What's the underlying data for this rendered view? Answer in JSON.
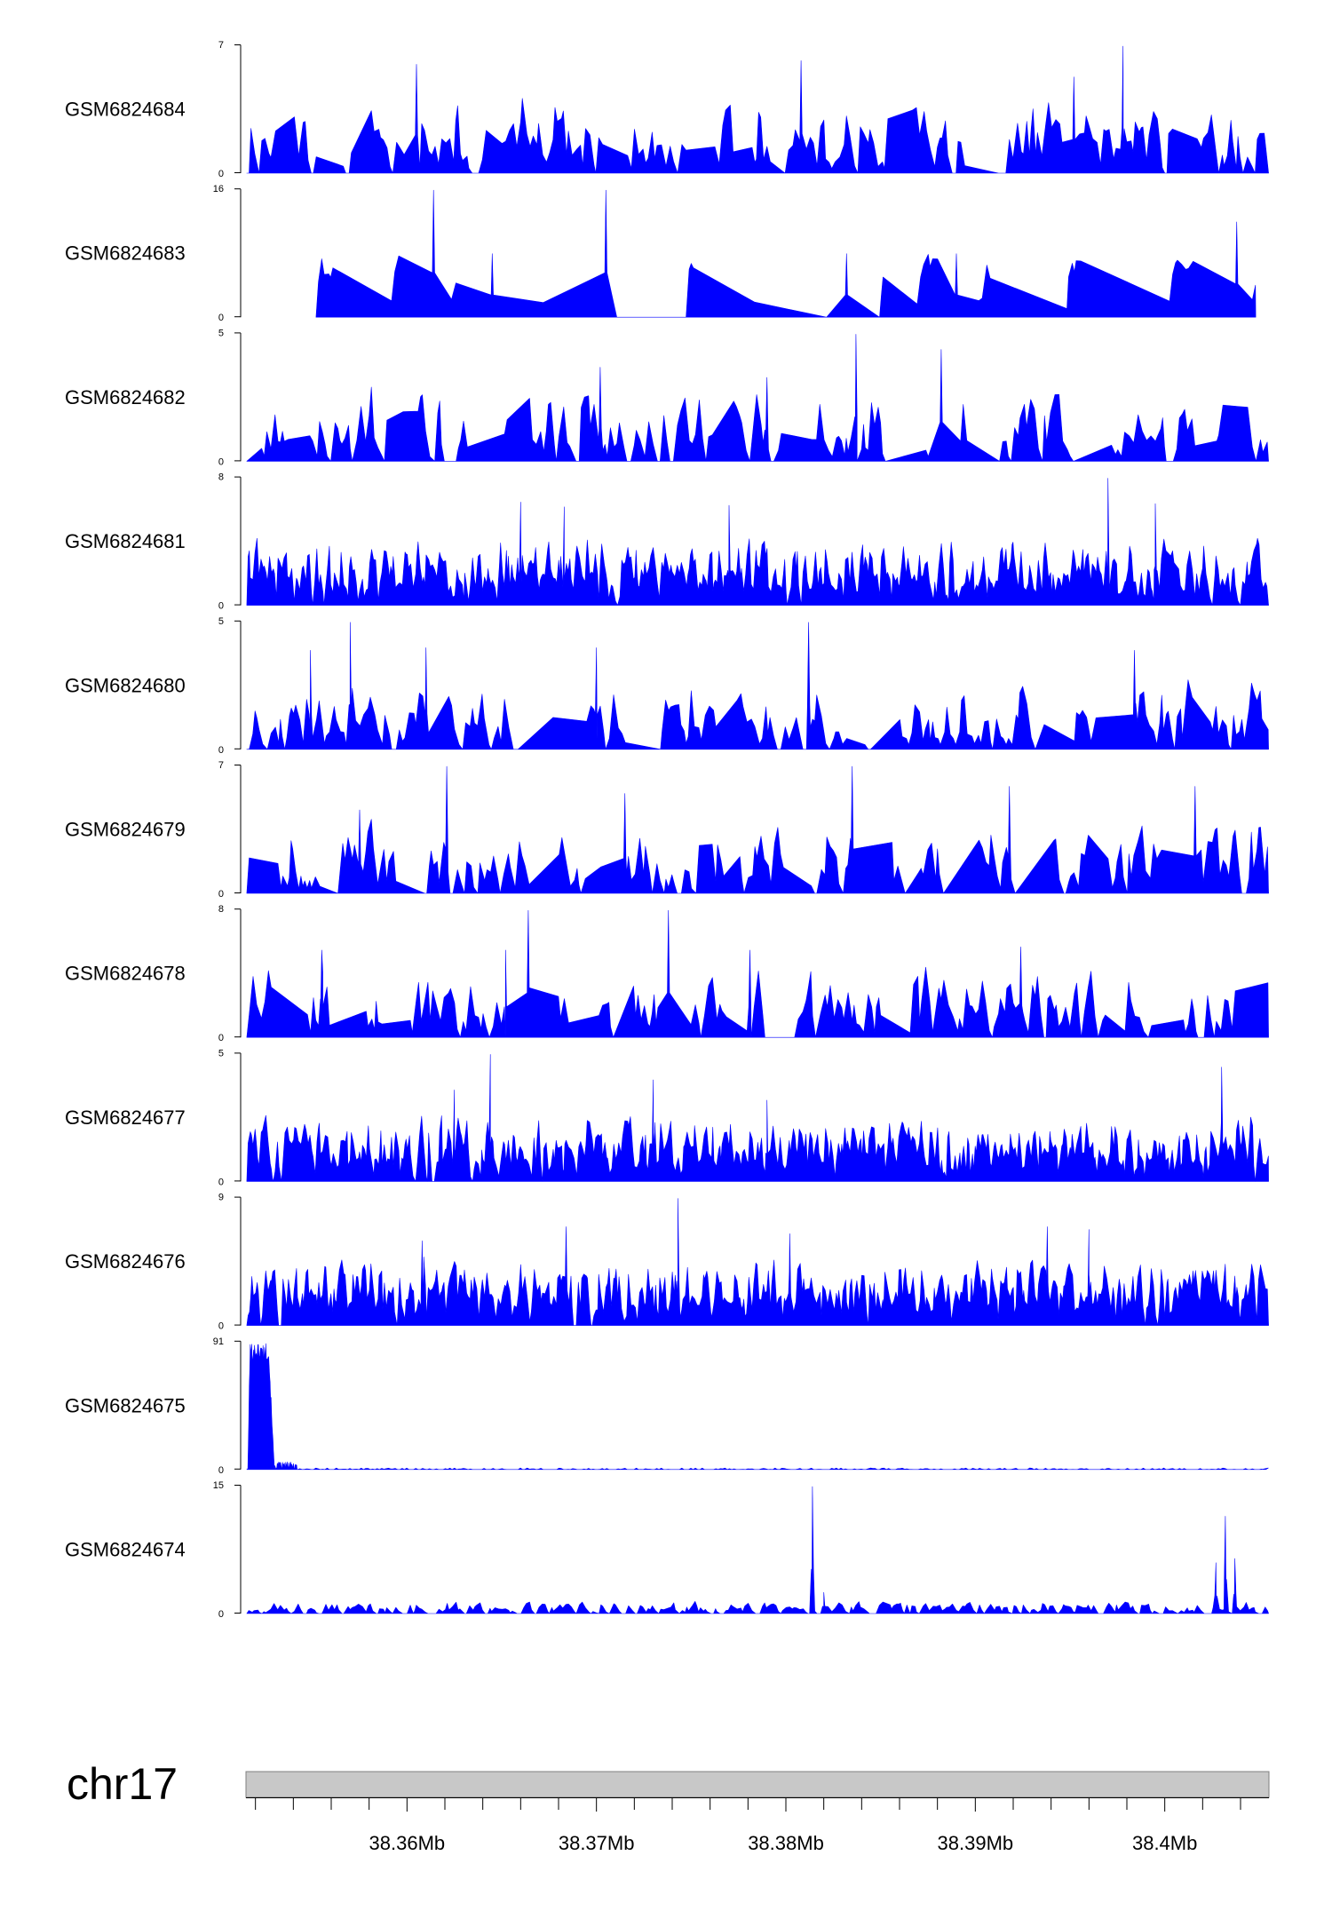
{
  "chart_data": {
    "type": "area",
    "colors": {
      "signal": "#0000FF",
      "ideogram": "#C8C8C8",
      "ideogram_border": "#808080"
    },
    "chromosome": "chr17",
    "xlim": [
      38351500,
      38405500
    ],
    "x_ticks": [
      {
        "pos": 38360000,
        "label": "38.36Mb"
      },
      {
        "pos": 38370000,
        "label": "38.37Mb"
      },
      {
        "pos": 38380000,
        "label": "38.38Mb"
      },
      {
        "pos": 38390000,
        "label": "38.39Mb"
      },
      {
        "pos": 38400000,
        "label": "38.4Mb"
      }
    ],
    "minor_tick_step": 2000,
    "tracks": [
      {
        "name": "GSM6824684",
        "ymin": "0",
        "ymax": "7",
        "max": 7,
        "seed": 11,
        "style": "sparse",
        "peaks": [
          [
            38360500,
            6.0
          ],
          [
            38380800,
            6.2
          ],
          [
            38397800,
            7.0
          ],
          [
            38395200,
            5.3
          ]
        ]
      },
      {
        "name": "GSM6824683",
        "ymin": "0",
        "ymax": "16",
        "max": 16,
        "seed": 23,
        "style": "sparse_gapped",
        "start": 38355200,
        "end": 38404800,
        "peaks": [
          [
            38361400,
            16.0
          ],
          [
            38370500,
            16.0
          ],
          [
            38364500,
            8.0
          ],
          [
            38383200,
            8.0
          ],
          [
            38389000,
            8.0
          ],
          [
            38403800,
            12.0
          ]
        ]
      },
      {
        "name": "GSM6824682",
        "ymin": "0",
        "ymax": "5",
        "max": 5,
        "seed": 37,
        "style": "sparse",
        "peaks": [
          [
            38383700,
            5.0
          ],
          [
            38388200,
            4.4
          ],
          [
            38370200,
            3.7
          ],
          [
            38379000,
            3.3
          ]
        ]
      },
      {
        "name": "GSM6824681",
        "ymin": "0",
        "ymax": "8",
        "max": 8,
        "seed": 41,
        "style": "dense",
        "peaks": [
          [
            38366000,
            6.5
          ],
          [
            38368300,
            6.2
          ],
          [
            38377000,
            6.3
          ],
          [
            38397000,
            8.0
          ],
          [
            38399500,
            6.4
          ]
        ]
      },
      {
        "name": "GSM6824680",
        "ymin": "0",
        "ymax": "5",
        "max": 5,
        "seed": 53,
        "style": "sparse",
        "peaks": [
          [
            38357000,
            5.0
          ],
          [
            38354900,
            3.9
          ],
          [
            38381200,
            5.0
          ],
          [
            38361000,
            4.0
          ],
          [
            38370000,
            4.0
          ],
          [
            38398400,
            3.9
          ]
        ]
      },
      {
        "name": "GSM6824679",
        "ymin": "0",
        "ymax": "7",
        "max": 7,
        "seed": 67,
        "style": "sparse",
        "peaks": [
          [
            38362100,
            7.0
          ],
          [
            38383500,
            7.0
          ],
          [
            38371500,
            5.5
          ],
          [
            38391800,
            5.9
          ],
          [
            38401600,
            5.9
          ],
          [
            38357500,
            4.6
          ]
        ]
      },
      {
        "name": "GSM6824678",
        "ymin": "0",
        "ymax": "8",
        "max": 8,
        "seed": 71,
        "style": "sparse",
        "peaks": [
          [
            38366400,
            8.0
          ],
          [
            38373800,
            8.0
          ],
          [
            38365200,
            5.5
          ],
          [
            38378100,
            5.5
          ],
          [
            38392400,
            5.7
          ],
          [
            38355500,
            5.5
          ]
        ]
      },
      {
        "name": "GSM6824677",
        "ymin": "0",
        "ymax": "5",
        "max": 5,
        "seed": 83,
        "style": "dense",
        "peaks": [
          [
            38364400,
            5.0
          ],
          [
            38373000,
            4.0
          ],
          [
            38403000,
            4.5
          ],
          [
            38362500,
            3.6
          ],
          [
            38379000,
            3.2
          ]
        ]
      },
      {
        "name": "GSM6824676",
        "ymin": "0",
        "ymax": "9",
        "max": 9,
        "seed": 97,
        "style": "dense",
        "peaks": [
          [
            38374300,
            9.0
          ],
          [
            38368400,
            7.0
          ],
          [
            38393800,
            7.0
          ],
          [
            38396000,
            6.8
          ],
          [
            38360800,
            6.0
          ],
          [
            38380200,
            6.5
          ]
        ]
      },
      {
        "name": "GSM6824675",
        "ymin": "0",
        "ymax": "91",
        "max": 91,
        "seed": 101,
        "style": "single_region",
        "region": [
          38351600,
          38353000
        ],
        "region_height": 91
      },
      {
        "name": "GSM6824674",
        "ymin": "0",
        "ymax": "15",
        "max": 15,
        "seed": 113,
        "style": "quiet",
        "peaks": [
          [
            38381400,
            15.0
          ],
          [
            38403200,
            11.5
          ],
          [
            38382000,
            2.5
          ],
          [
            38402700,
            6.0
          ],
          [
            38403700,
            6.5
          ]
        ]
      }
    ]
  }
}
